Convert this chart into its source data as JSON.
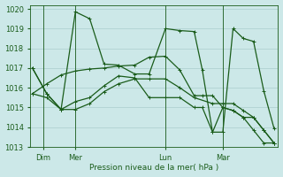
{
  "xlabel": "Pression niveau de la mer( hPa )",
  "background_color": "#cce8e8",
  "grid_color": "#aacece",
  "line_color": "#1a5c1a",
  "ylim": [
    1013,
    1020.2
  ],
  "yticks": [
    1013,
    1014,
    1015,
    1016,
    1017,
    1018,
    1019,
    1020
  ],
  "day_labels": [
    "Dim",
    "Mer",
    "Lun",
    "Mar"
  ],
  "day_positions": [
    0.52,
    2.1,
    6.5,
    9.3
  ],
  "vline_positions": [
    0.52,
    2.1,
    6.5,
    9.3
  ],
  "xlim": [
    -0.1,
    12.0
  ],
  "series": [
    {
      "x": [
        0.0,
        0.7,
        1.4,
        2.1,
        2.8,
        3.5,
        4.2,
        5.0,
        5.7,
        6.5,
        7.2,
        7.9,
        8.3,
        8.8,
        9.3,
        9.8,
        10.3,
        10.8,
        11.3,
        11.8
      ],
      "y": [
        1017.0,
        1015.7,
        1014.9,
        1019.85,
        1019.5,
        1017.2,
        1017.15,
        1016.7,
        1016.7,
        1019.0,
        1018.9,
        1018.85,
        1016.9,
        1013.75,
        1013.75,
        1019.0,
        1018.5,
        1018.35,
        1015.85,
        1013.95
      ]
    },
    {
      "x": [
        0.0,
        0.7,
        1.4,
        2.1,
        2.8,
        3.5,
        4.2,
        5.0,
        5.7,
        6.5,
        7.2,
        7.9,
        8.3,
        8.8,
        9.3,
        9.8,
        10.3,
        10.8,
        11.3,
        11.8
      ],
      "y": [
        1017.0,
        1015.7,
        1014.9,
        1015.3,
        1015.5,
        1016.1,
        1016.6,
        1016.5,
        1015.5,
        1015.5,
        1015.5,
        1015.0,
        1015.0,
        1013.75,
        1015.0,
        1014.85,
        1014.5,
        1014.5,
        1013.85,
        1013.2
      ]
    },
    {
      "x": [
        0.0,
        0.7,
        1.4,
        2.1,
        2.8,
        3.5,
        4.2,
        5.0,
        5.7,
        6.5,
        7.2,
        7.9,
        8.8,
        9.3,
        9.8,
        10.3,
        10.8,
        11.3,
        11.8
      ],
      "y": [
        1015.7,
        1015.5,
        1014.9,
        1014.9,
        1015.2,
        1015.8,
        1016.2,
        1016.45,
        1016.45,
        1016.45,
        1016.0,
        1015.5,
        1015.2,
        1015.2,
        1015.2,
        1014.85,
        1014.5,
        1013.85,
        1013.2
      ]
    },
    {
      "x": [
        0.0,
        0.7,
        1.4,
        2.1,
        2.8,
        3.5,
        4.2,
        5.0,
        5.7,
        6.5,
        7.2,
        7.9,
        8.3,
        8.8,
        9.3,
        9.8,
        10.3,
        10.8,
        11.3,
        11.8
      ],
      "y": [
        1015.7,
        1016.2,
        1016.65,
        1016.85,
        1016.95,
        1017.0,
        1017.1,
        1017.15,
        1017.55,
        1017.6,
        1016.9,
        1015.6,
        1015.6,
        1015.6,
        1015.0,
        1014.85,
        1014.5,
        1013.85,
        1013.2,
        1013.2
      ]
    }
  ]
}
